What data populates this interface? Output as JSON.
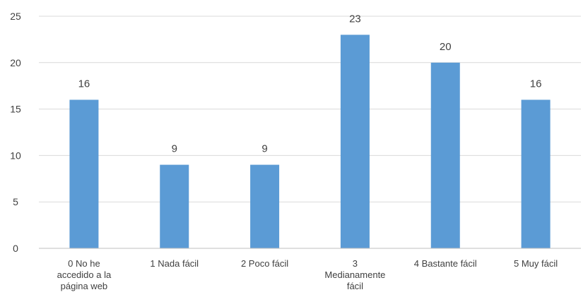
{
  "chart_data": {
    "type": "bar",
    "categories": [
      [
        "0 No he",
        "accedido a la",
        "página web"
      ],
      [
        "1 Nada fácil"
      ],
      [
        "2 Poco fácil"
      ],
      [
        "3",
        "Medianamente",
        "fácil"
      ],
      [
        "4 Bastante fácil"
      ],
      [
        "5 Muy fácil"
      ]
    ],
    "values": [
      16,
      9,
      9,
      23,
      20,
      16
    ],
    "data_labels": [
      "16",
      "9",
      "9",
      "23",
      "20",
      "16"
    ],
    "yticks": [
      "0",
      "5",
      "10",
      "15",
      "20",
      "25"
    ],
    "ylim": [
      0,
      25
    ],
    "grid": true,
    "bar_color": "#5b9bd5"
  }
}
